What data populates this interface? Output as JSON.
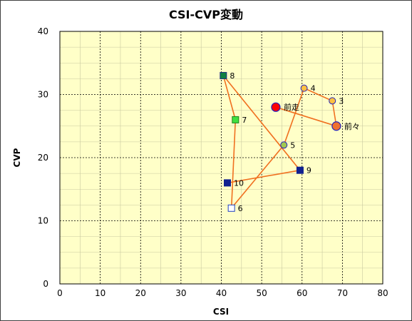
{
  "chart_data": {
    "type": "scatter",
    "title": "CSI-CVP変動",
    "xlabel": "CSI",
    "ylabel": "CVP",
    "xlim": [
      0,
      80
    ],
    "ylim": [
      0,
      40
    ],
    "x_ticks": [
      "0",
      "10",
      "20",
      "30",
      "40",
      "50",
      "60",
      "70",
      "80"
    ],
    "y_ticks": [
      "0",
      "10",
      "20",
      "30",
      "40"
    ],
    "grid": true,
    "line_color": "#f07020",
    "plot_background": "#ffffc8",
    "points": [
      {
        "label": "前走",
        "x": 53.5,
        "y": 28,
        "marker": "circle-large",
        "fill": "#ff0000",
        "stroke": "#2020c0"
      },
      {
        "label": "前々",
        "x": 68.5,
        "y": 25,
        "marker": "circle-large",
        "fill": "#f07030",
        "stroke": "#2020c0"
      },
      {
        "label": "3",
        "x": 67.5,
        "y": 29,
        "marker": "circle",
        "fill": "#ffc040",
        "stroke": "#2020c0"
      },
      {
        "label": "4",
        "x": 60.5,
        "y": 31,
        "marker": "circle",
        "fill": "#ffc040",
        "stroke": "#2020c0"
      },
      {
        "label": "5",
        "x": 55.5,
        "y": 22,
        "marker": "circle",
        "fill": "#a0c850",
        "stroke": "#2020c0"
      },
      {
        "label": "6",
        "x": 42.5,
        "y": 12,
        "marker": "square",
        "fill": "#ffffff",
        "stroke": "#2040c0"
      },
      {
        "label": "7",
        "x": 43.5,
        "y": 26,
        "marker": "square",
        "fill": "#40e040",
        "stroke": "#208020"
      },
      {
        "label": "8",
        "x": 40.5,
        "y": 33,
        "marker": "square",
        "fill": "#108040",
        "stroke": "#203080"
      },
      {
        "label": "9",
        "x": 59.5,
        "y": 18,
        "marker": "square",
        "fill": "#102090",
        "stroke": "#102090"
      },
      {
        "label": "10",
        "x": 41.5,
        "y": 16,
        "marker": "square",
        "fill": "#102090",
        "stroke": "#102090"
      }
    ]
  }
}
